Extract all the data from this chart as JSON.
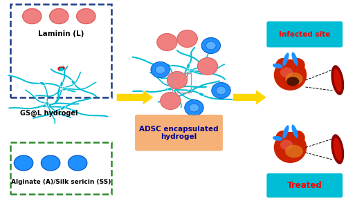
{
  "fig_width": 5.0,
  "fig_height": 2.91,
  "dpi": 100,
  "bg_color": "#ffffff",
  "laminin_box_color": "#1a3a8a",
  "alginate_box_color": "#2e8b2e",
  "adsc_box_color": "#f4a460",
  "infected_box_color": "#00bcd4",
  "treated_box_color": "#00bcd4",
  "arrow_color": "#ffd700",
  "hydrogel_color": "#00bcd4",
  "pink_cell_color": "#f08080",
  "blue_cell_color": "#1e90ff",
  "cell_outline": "#4169e1",
  "infected_text_color": "#ff0000",
  "treated_text_color": "#ff0000",
  "adsc_text_color": "#00008b",
  "label_texts": {
    "laminin": "Laminin (L)",
    "gs_hydrogel": "GS@L hydrogel",
    "alginate": "Alginate (A)/Silk sericin (SS)",
    "adsc": "ADSC encapsulated\nhydrogel",
    "infected": "Infected site",
    "treated": "Treated"
  }
}
